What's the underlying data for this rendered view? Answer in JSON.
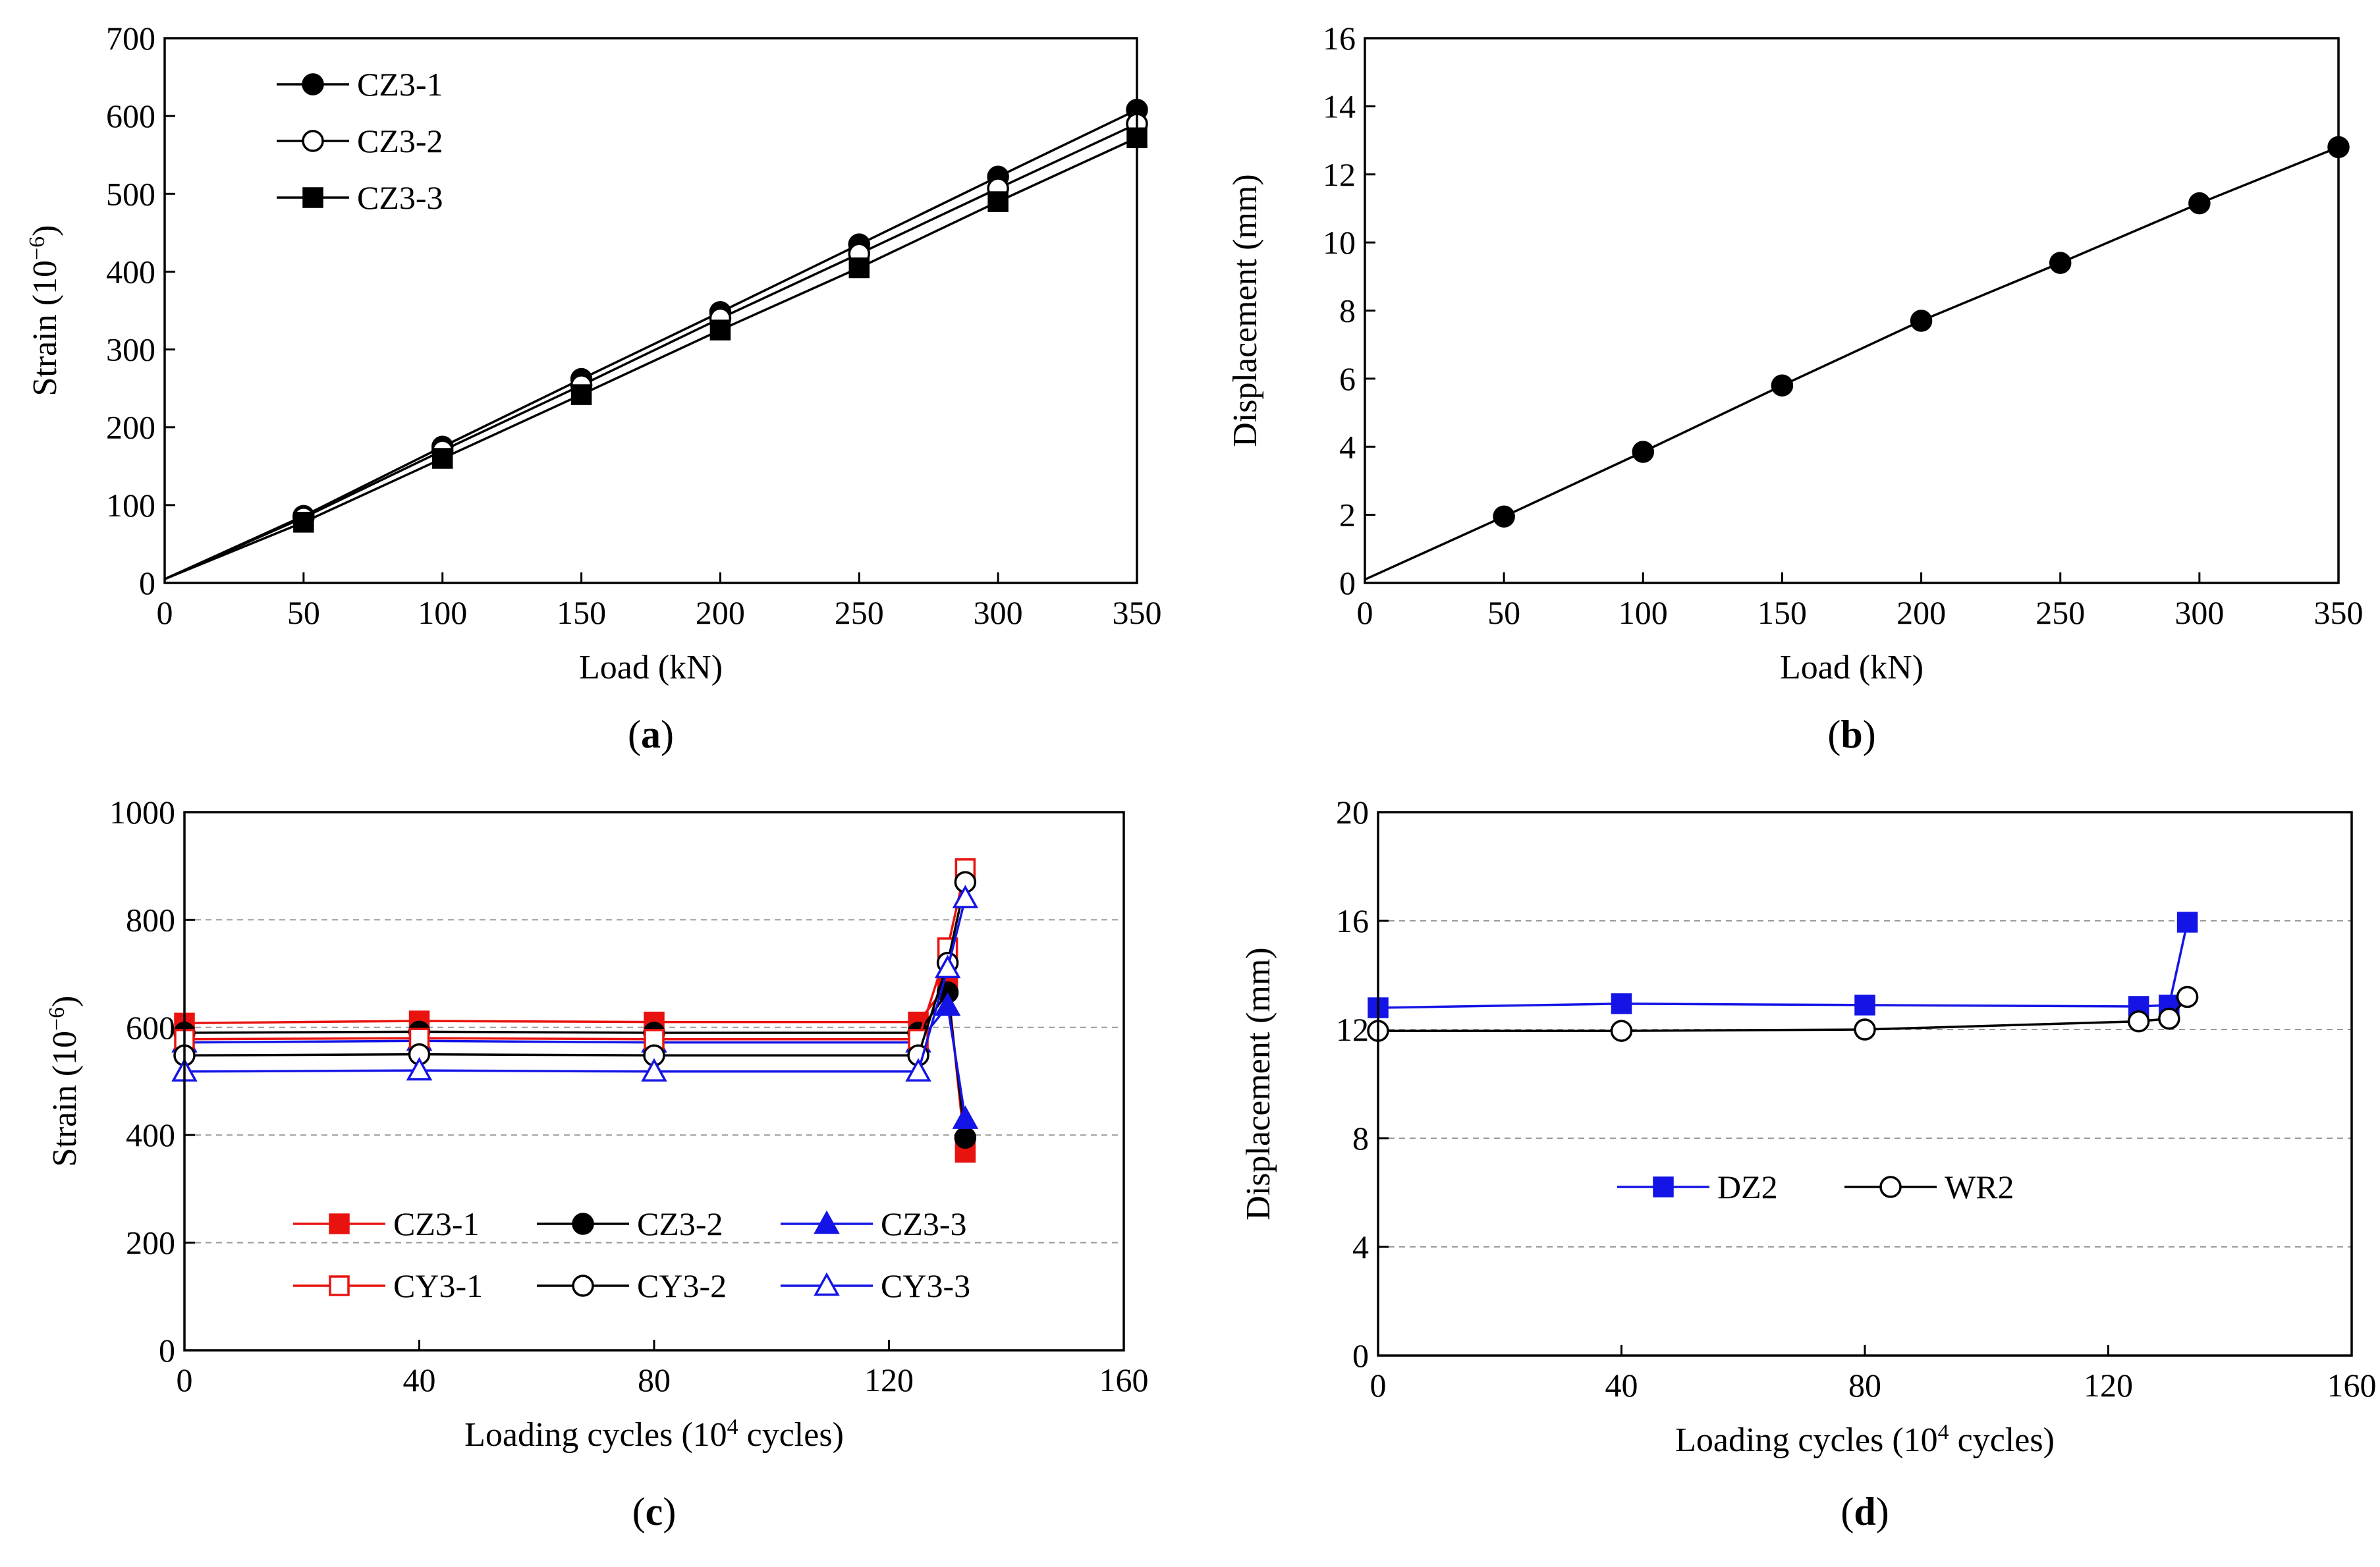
{
  "chart_data": [
    {
      "id": "a",
      "type": "line",
      "caption": "a",
      "xlabel": "Load (kN)",
      "ylabel": "Strain (10",
      "ylabel_sup": "−6",
      "ylabel_close": ")",
      "xlim": [
        0,
        350
      ],
      "ylim": [
        0,
        700
      ],
      "xticks": [
        0,
        50,
        100,
        150,
        200,
        250,
        300,
        350
      ],
      "yticks": [
        0,
        100,
        200,
        300,
        400,
        500,
        600,
        700
      ],
      "grid": false,
      "legend_position": "top-left",
      "x": [
        0,
        50,
        100,
        150,
        200,
        250,
        300,
        350
      ],
      "series": [
        {
          "name": "CZ3-1",
          "marker": "circle-filled",
          "color": "#000000",
          "values": [
            5,
            86,
            175,
            262,
            348,
            435,
            522,
            608
          ]
        },
        {
          "name": "CZ3-2",
          "marker": "circle-open",
          "color": "#000000",
          "values": [
            5,
            84,
            170,
            254,
            340,
            423,
            507,
            590
          ]
        },
        {
          "name": "CZ3-3",
          "marker": "square-filled",
          "color": "#000000",
          "values": [
            5,
            78,
            160,
            242,
            325,
            405,
            490,
            572
          ]
        }
      ]
    },
    {
      "id": "b",
      "type": "line",
      "caption": "b",
      "xlabel": "Load (kN)",
      "ylabel": "Displacement (mm)",
      "xlim": [
        0,
        350
      ],
      "ylim": [
        0,
        16
      ],
      "xticks": [
        0,
        50,
        100,
        150,
        200,
        250,
        300,
        350
      ],
      "yticks": [
        0,
        2,
        4,
        6,
        8,
        10,
        12,
        14,
        16
      ],
      "grid": false,
      "x": [
        0,
        50,
        100,
        150,
        200,
        250,
        300,
        350
      ],
      "series": [
        {
          "name": "",
          "marker": "circle-filled",
          "color": "#000000",
          "x": [
            50,
            100,
            150,
            200,
            250,
            300,
            350
          ],
          "values": [
            1.95,
            3.85,
            5.8,
            7.7,
            9.4,
            11.15,
            12.8
          ],
          "line_x": [
            0,
            50,
            100,
            150,
            200,
            250,
            300,
            350
          ],
          "line_values": [
            0.1,
            1.95,
            3.85,
            5.8,
            7.7,
            9.4,
            11.15,
            12.8
          ]
        }
      ]
    },
    {
      "id": "c",
      "type": "line",
      "caption": "c",
      "xlabel": "Loading cycles (10",
      "xlabel_sup": "4",
      "xlabel_close": " cycles)",
      "ylabel": "Strain (10",
      "ylabel_sup": "−6",
      "ylabel_close": ")",
      "xlim": [
        0,
        160
      ],
      "ylim": [
        0,
        1000
      ],
      "xticks": [
        0,
        40,
        80,
        120,
        160
      ],
      "yticks": [
        0,
        200,
        400,
        600,
        800,
        1000
      ],
      "grid": true,
      "legend_position": "bottom",
      "x": [
        0,
        40,
        80,
        125,
        130,
        133
      ],
      "series": [
        {
          "name": "CZ3-1",
          "marker": "square-filled",
          "color": "#e8130f",
          "values": [
            608,
            612,
            610,
            610,
            680,
            368
          ]
        },
        {
          "name": "CZ3-2",
          "marker": "circle-filled",
          "color": "#000000",
          "values": [
            590,
            592,
            590,
            590,
            665,
            395
          ]
        },
        {
          "name": "CZ3-3",
          "marker": "triangle-filled",
          "color": "#1414e6",
          "values": [
            572,
            575,
            572,
            572,
            640,
            430
          ]
        },
        {
          "name": "CY3-1",
          "marker": "square-open",
          "color": "#e8130f",
          "values": [
            578,
            580,
            578,
            578,
            748,
            895
          ]
        },
        {
          "name": "CY3-2",
          "marker": "circle-open",
          "color": "#000000",
          "values": [
            548,
            550,
            548,
            548,
            720,
            870
          ]
        },
        {
          "name": "CY3-3",
          "marker": "triangle-open",
          "color": "#1414e6",
          "values": [
            518,
            520,
            518,
            518,
            710,
            840
          ]
        }
      ]
    },
    {
      "id": "d",
      "type": "line",
      "caption": "d",
      "xlabel": "Loading cycles (10",
      "xlabel_sup": "4",
      "xlabel_close": " cycles)",
      "ylabel": "Displacement (mm)",
      "xlim": [
        0,
        160
      ],
      "ylim": [
        0,
        20
      ],
      "xticks": [
        0,
        40,
        80,
        120,
        160
      ],
      "yticks": [
        0,
        4,
        8,
        12,
        16,
        20
      ],
      "grid": true,
      "legend_position": "bottom",
      "x": [
        0,
        40,
        80,
        125,
        130,
        133
      ],
      "series": [
        {
          "name": "DZ2",
          "marker": "square-filled",
          "color": "#1414e6",
          "values": [
            12.8,
            12.95,
            12.9,
            12.85,
            12.9,
            15.95
          ]
        },
        {
          "name": "WR2",
          "marker": "circle-open",
          "color": "#000000",
          "values": [
            11.95,
            11.95,
            12.0,
            12.3,
            12.4,
            13.2
          ]
        }
      ]
    }
  ]
}
